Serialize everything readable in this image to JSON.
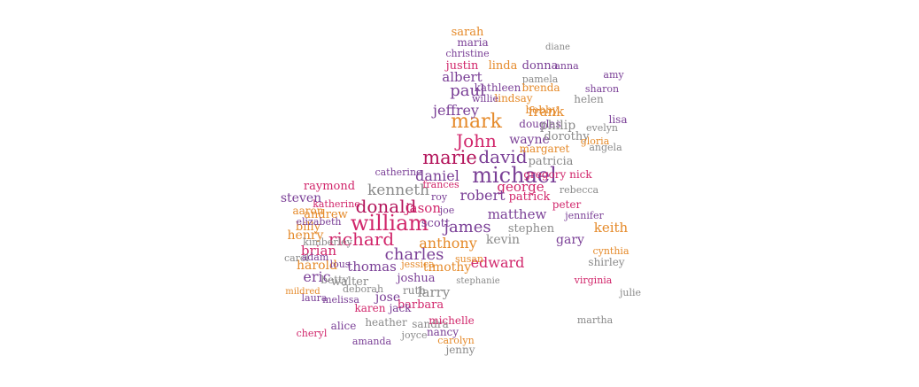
{
  "image": {
    "kind": "word-cloud",
    "shape": "crawling baby silhouette",
    "palette": [
      "#d1266b",
      "#7a3f96",
      "#e58a2a",
      "#8a8a8a",
      "#b3135a",
      "#5a2a7a",
      "#c89a3a",
      "#e07aa0"
    ]
  },
  "words": [
    {
      "t": "John",
      "c": "#d1266b"
    },
    {
      "t": "marie",
      "c": "#b3135a"
    },
    {
      "t": "david",
      "c": "#7a3f96"
    },
    {
      "t": "michael",
      "c": "#7a3f96"
    },
    {
      "t": "william",
      "c": "#d1266b"
    },
    {
      "t": "james",
      "c": "#7a3f96"
    },
    {
      "t": "donald",
      "c": "#b3135a"
    },
    {
      "t": "richard",
      "c": "#d1266b"
    },
    {
      "t": "charles",
      "c": "#7a3f96"
    },
    {
      "t": "edward",
      "c": "#d1266b"
    },
    {
      "t": "anthony",
      "c": "#e58a2a"
    },
    {
      "t": "kevin",
      "c": "#8a8a8a"
    },
    {
      "t": "george",
      "c": "#d1266b"
    },
    {
      "t": "robert",
      "c": "#7a3f96"
    },
    {
      "t": "matthew",
      "c": "#7a3f96"
    },
    {
      "t": "kenneth",
      "c": "#8a8a8a"
    },
    {
      "t": "steven",
      "c": "#7a3f96"
    },
    {
      "t": "jason",
      "c": "#d1266b"
    },
    {
      "t": "mark",
      "c": "#e58a2a"
    },
    {
      "t": "paul",
      "c": "#7a3f96"
    },
    {
      "t": "jeffrey",
      "c": "#7a3f96"
    },
    {
      "t": "frank",
      "c": "#e58a2a"
    },
    {
      "t": "wayne",
      "c": "#7a3f96"
    },
    {
      "t": "daniel",
      "c": "#7a3f96"
    },
    {
      "t": "gregory nick",
      "c": "#d1266b"
    },
    {
      "t": "patrick",
      "c": "#d1266b"
    },
    {
      "t": "peter",
      "c": "#d1266b"
    },
    {
      "t": "keith",
      "c": "#e58a2a"
    },
    {
      "t": "stephen",
      "c": "#8a8a8a"
    },
    {
      "t": "gary",
      "c": "#7a3f96"
    },
    {
      "t": "brian",
      "c": "#d1266b"
    },
    {
      "t": "thomas",
      "c": "#7a3f96"
    },
    {
      "t": "timothy",
      "c": "#e58a2a"
    },
    {
      "t": "joshua",
      "c": "#7a3f96"
    },
    {
      "t": "harold",
      "c": "#e58a2a"
    },
    {
      "t": "henry",
      "c": "#e58a2a"
    },
    {
      "t": "eric",
      "c": "#7a3f96"
    },
    {
      "t": "walter",
      "c": "#8a8a8a"
    },
    {
      "t": "larry",
      "c": "#8a8a8a"
    },
    {
      "t": "jose",
      "c": "#7a3f96"
    },
    {
      "t": "ruth",
      "c": "#8a8a8a"
    },
    {
      "t": "barbara",
      "c": "#d1266b"
    },
    {
      "t": "scott",
      "c": "#7a3f96"
    },
    {
      "t": "andrew",
      "c": "#e58a2a"
    },
    {
      "t": "raymond",
      "c": "#d1266b"
    },
    {
      "t": "aaron",
      "c": "#e58a2a"
    },
    {
      "t": "douglas",
      "c": "#7a3f96"
    },
    {
      "t": "philip",
      "c": "#8a8a8a"
    },
    {
      "t": "bobby",
      "c": "#e58a2a"
    },
    {
      "t": "dorothy",
      "c": "#8a8a8a"
    },
    {
      "t": "patricia",
      "c": "#8a8a8a"
    },
    {
      "t": "margaret",
      "c": "#e58a2a"
    },
    {
      "t": "angela",
      "c": "#8a8a8a"
    },
    {
      "t": "albert",
      "c": "#7a3f96"
    },
    {
      "t": "kathleen",
      "c": "#7a3f96"
    },
    {
      "t": "lindsay",
      "c": "#e58a2a"
    },
    {
      "t": "willie",
      "c": "#7a3f96"
    },
    {
      "t": "linda",
      "c": "#e58a2a"
    },
    {
      "t": "donna",
      "c": "#7a3f96"
    },
    {
      "t": "justin",
      "c": "#d1266b"
    },
    {
      "t": "christine",
      "c": "#7a3f96"
    },
    {
      "t": "maria",
      "c": "#7a3f96"
    },
    {
      "t": "sarah",
      "c": "#e58a2a"
    },
    {
      "t": "pamela",
      "c": "#8a8a8a"
    },
    {
      "t": "brenda",
      "c": "#e58a2a"
    },
    {
      "t": "helen",
      "c": "#8a8a8a"
    },
    {
      "t": "sharon",
      "c": "#7a3f96"
    },
    {
      "t": "lisa",
      "c": "#7a3f96"
    },
    {
      "t": "jenny",
      "c": "#8a8a8a"
    },
    {
      "t": "nancy",
      "c": "#7a3f96"
    },
    {
      "t": "sandra",
      "c": "#8a8a8a"
    },
    {
      "t": "carolyn",
      "c": "#e58a2a"
    },
    {
      "t": "michelle",
      "c": "#d1266b"
    },
    {
      "t": "jack",
      "c": "#7a3f96"
    },
    {
      "t": "karen",
      "c": "#d1266b"
    },
    {
      "t": "melissa",
      "c": "#7a3f96"
    },
    {
      "t": "heather",
      "c": "#8a8a8a"
    },
    {
      "t": "alice",
      "c": "#7a3f96"
    },
    {
      "t": "joyce",
      "c": "#8a8a8a"
    },
    {
      "t": "cheryl",
      "c": "#d1266b"
    },
    {
      "t": "shirley",
      "c": "#8a8a8a"
    },
    {
      "t": "cynthia",
      "c": "#e58a2a"
    },
    {
      "t": "jennifer",
      "c": "#7a3f96"
    },
    {
      "t": "rebecca",
      "c": "#8a8a8a"
    },
    {
      "t": "laura",
      "c": "#7a3f96"
    },
    {
      "t": "betty",
      "c": "#8a8a8a"
    },
    {
      "t": "carol",
      "c": "#8a8a8a"
    },
    {
      "t": "adam",
      "c": "#7a3f96"
    },
    {
      "t": "lous",
      "c": "#7a3f96"
    },
    {
      "t": "mildred",
      "c": "#e58a2a"
    },
    {
      "t": "kimberley",
      "c": "#8a8a8a"
    },
    {
      "t": "billy",
      "c": "#e58a2a"
    },
    {
      "t": "elizabeth",
      "c": "#7a3f96"
    },
    {
      "t": "katherine",
      "c": "#d1266b"
    },
    {
      "t": "deborah",
      "c": "#8a8a8a"
    },
    {
      "t": "susan",
      "c": "#e58a2a"
    },
    {
      "t": "joe",
      "c": "#7a3f96"
    },
    {
      "t": "frances",
      "c": "#d1266b"
    },
    {
      "t": "roy",
      "c": "#7a3f96"
    },
    {
      "t": "jessica",
      "c": "#e58a2a"
    },
    {
      "t": "catherine",
      "c": "#7a3f96"
    },
    {
      "t": "martha",
      "c": "#8a8a8a"
    },
    {
      "t": "virginia",
      "c": "#d1266b"
    },
    {
      "t": "julie",
      "c": "#8a8a8a"
    },
    {
      "t": "amanda",
      "c": "#7a3f96"
    },
    {
      "t": "stephanie",
      "c": "#8a8a8a"
    },
    {
      "t": "gloria",
      "c": "#e58a2a"
    },
    {
      "t": "evelyn",
      "c": "#8a8a8a"
    },
    {
      "t": "anna",
      "c": "#7a3f96"
    },
    {
      "t": "diane",
      "c": "#8a8a8a"
    },
    {
      "t": "amy",
      "c": "#7a3f96"
    }
  ]
}
